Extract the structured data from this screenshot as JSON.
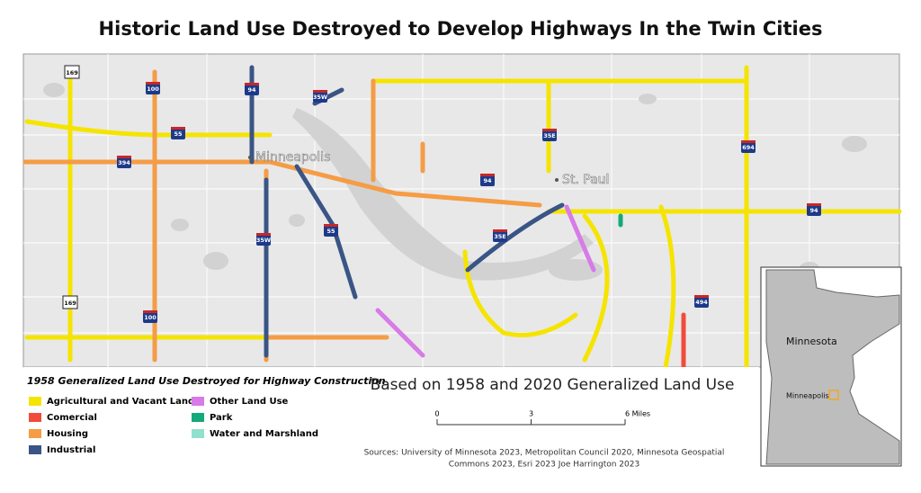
{
  "title": "Historic Land Use Destroyed to Develop Highways In the Twin Cities",
  "map": {
    "cities": [
      "Minneapolis",
      "St. Paul"
    ],
    "shields": [
      "169",
      "100",
      "94",
      "35W",
      "55",
      "394",
      "35E",
      "694",
      "94",
      "35W",
      "55",
      "35E",
      "169",
      "100",
      "494",
      "94"
    ]
  },
  "legend": {
    "title": "1958 Generalized Land Use Destroyed for Highway Construction",
    "items": [
      {
        "label": "Agricultural and Vacant Land",
        "color": "#f5e400"
      },
      {
        "label": "Comercial",
        "color": "#f24b3b"
      },
      {
        "label": "Housing",
        "color": "#f59c45"
      },
      {
        "label": "Industrial",
        "color": "#3a5585"
      },
      {
        "label": "Other Land Use",
        "color": "#d77be8"
      },
      {
        "label": "Park",
        "color": "#14a97a"
      },
      {
        "label": "Water and Marshland",
        "color": "#8fe0cd"
      }
    ]
  },
  "subtitle": "Based on 1958 and 2020 Generalized Land Use",
  "scale_bar": {
    "ticks": [
      0,
      3,
      {
        "value": 6,
        "label": "6 Miles"
      }
    ]
  },
  "sources": [
    "Sources: University of Minnesota 2023, Metropolitan Council 2020, Minnesota Geospatial",
    "Commons 2023, Esri 2023 Joe Harrington 2023"
  ],
  "inset": {
    "state": "Minnesota",
    "city": "Minneapolis"
  }
}
